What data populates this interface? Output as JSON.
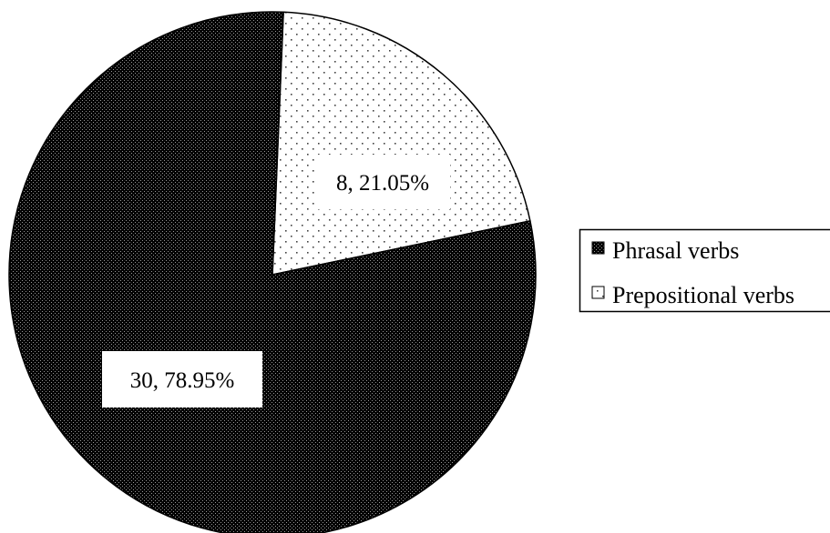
{
  "chart_data": {
    "type": "pie",
    "title": "",
    "series": [
      {
        "name": "Phrasal verbs",
        "value": 30,
        "percent": 78.95,
        "label": "30, 78.95%",
        "pattern": "dense-dots",
        "color": "#1a1a1a"
      },
      {
        "name": "Prepositional verbs",
        "value": 8,
        "percent": 21.05,
        "label": "8, 21.05%",
        "pattern": "sparse-dots",
        "color": "#ffffff"
      }
    ],
    "start_angle_deg": 2.4,
    "direction": "clockwise",
    "legend": {
      "position": "right",
      "entries": [
        "Phrasal verbs",
        "Prepositional verbs"
      ]
    }
  }
}
